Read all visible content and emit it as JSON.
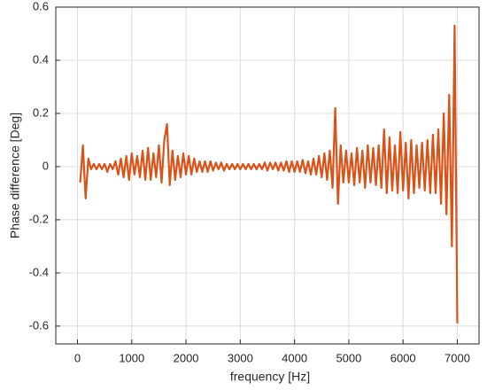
{
  "chart_data": {
    "type": "line",
    "xlabel": "frequency [Hz]",
    "ylabel": "Phase difference [Deg]",
    "x": [
      50,
      100,
      150,
      200,
      250,
      300,
      350,
      400,
      450,
      500,
      550,
      600,
      650,
      700,
      750,
      800,
      850,
      900,
      950,
      1000,
      1050,
      1100,
      1150,
      1200,
      1250,
      1300,
      1350,
      1400,
      1450,
      1500,
      1550,
      1600,
      1650,
      1700,
      1750,
      1800,
      1850,
      1900,
      1950,
      2000,
      2050,
      2100,
      2150,
      2200,
      2250,
      2300,
      2350,
      2400,
      2450,
      2500,
      2550,
      2600,
      2650,
      2700,
      2750,
      2800,
      2850,
      2900,
      2950,
      3000,
      3050,
      3100,
      3150,
      3200,
      3250,
      3300,
      3350,
      3400,
      3450,
      3500,
      3550,
      3600,
      3650,
      3700,
      3750,
      3800,
      3850,
      3900,
      3950,
      4000,
      4050,
      4100,
      4150,
      4200,
      4250,
      4300,
      4350,
      4400,
      4450,
      4500,
      4550,
      4600,
      4650,
      4700,
      4750,
      4800,
      4850,
      4900,
      4950,
      5000,
      5050,
      5100,
      5150,
      5200,
      5250,
      5300,
      5350,
      5400,
      5450,
      5500,
      5550,
      5600,
      5650,
      5700,
      5750,
      5800,
      5850,
      5900,
      5950,
      6000,
      6050,
      6100,
      6150,
      6200,
      6250,
      6300,
      6350,
      6400,
      6450,
      6500,
      6550,
      6600,
      6650,
      6700,
      6750,
      6800,
      6850,
      6900,
      6950,
      7000
    ],
    "values": [
      -0.06,
      0.08,
      -0.12,
      0.03,
      -0.01,
      0.01,
      -0.01,
      0.01,
      -0.01,
      0.01,
      -0.02,
      0.01,
      -0.01,
      0.02,
      -0.03,
      0.03,
      -0.04,
      0.04,
      -0.05,
      0.05,
      -0.03,
      0.04,
      -0.04,
      0.06,
      -0.05,
      0.07,
      -0.05,
      0.05,
      -0.04,
      0.08,
      -0.06,
      0.1,
      0.16,
      -0.07,
      0.06,
      -0.05,
      0.04,
      -0.04,
      0.05,
      -0.03,
      0.04,
      -0.03,
      0.03,
      -0.02,
      0.02,
      -0.02,
      0.02,
      -0.02,
      0.02,
      -0.015,
      0.015,
      -0.01,
      0.015,
      -0.015,
      0.01,
      -0.01,
      0.01,
      -0.01,
      0.01,
      -0.01,
      0.01,
      -0.01,
      0.01,
      -0.01,
      0.01,
      -0.01,
      0.01,
      -0.01,
      0.015,
      -0.015,
      0.015,
      -0.01,
      0.015,
      -0.015,
      0.015,
      -0.015,
      0.02,
      -0.02,
      0.02,
      -0.02,
      0.02,
      -0.02,
      0.025,
      -0.025,
      0.02,
      -0.03,
      0.03,
      -0.03,
      0.04,
      -0.04,
      0.05,
      -0.05,
      0.06,
      -0.08,
      0.22,
      -0.14,
      0.08,
      -0.06,
      0.06,
      -0.06,
      0.05,
      -0.07,
      0.07,
      -0.06,
      0.06,
      -0.08,
      0.08,
      -0.06,
      0.07,
      -0.07,
      0.08,
      -0.08,
      0.14,
      -0.1,
      0.11,
      -0.09,
      0.08,
      -0.1,
      0.13,
      -0.09,
      0.09,
      -0.12,
      0.1,
      -0.1,
      0.08,
      -0.08,
      0.09,
      -0.09,
      0.1,
      -0.1,
      0.12,
      -0.1,
      0.14,
      -0.14,
      0.2,
      -0.18,
      0.27,
      -0.3,
      0.53,
      -0.59
    ],
    "color": "#d95319",
    "xlim": [
      -400,
      7400
    ],
    "ylim": [
      -0.667,
      0.6
    ],
    "xticks": [
      0,
      1000,
      2000,
      3000,
      4000,
      5000,
      6000,
      7000
    ],
    "yticks": [
      -0.6,
      -0.4,
      -0.2,
      0,
      0.2,
      0.4,
      0.6
    ],
    "grid": true
  }
}
